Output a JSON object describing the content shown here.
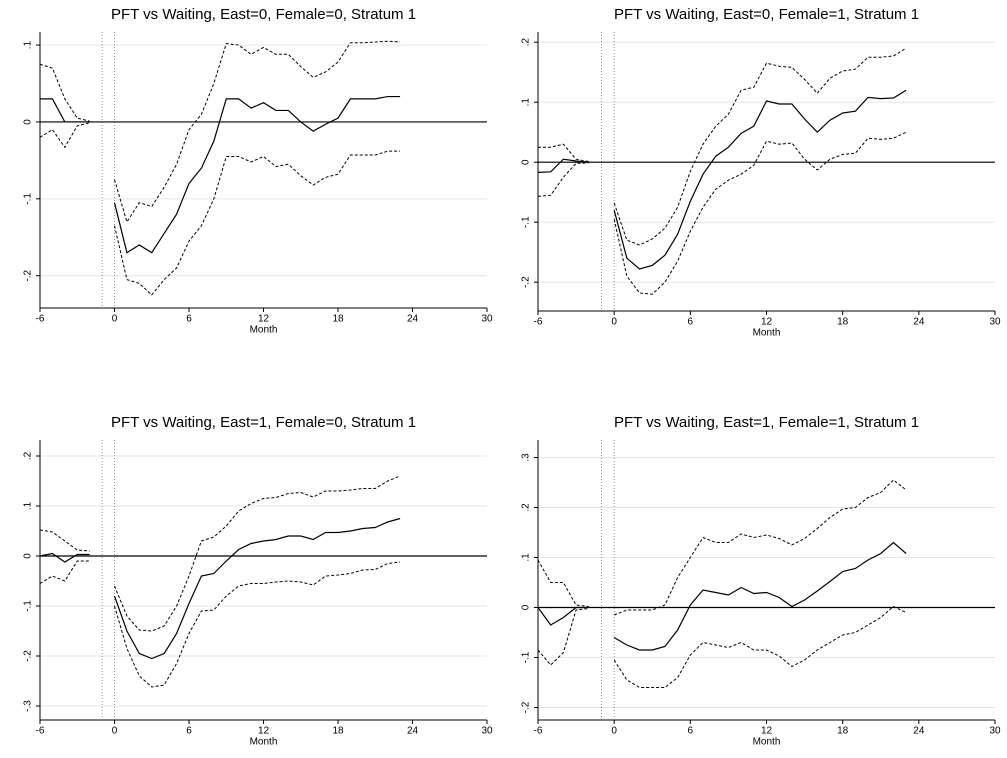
{
  "chart_data": [
    {
      "type": "line",
      "title": "PFT vs Waiting, East=0, Female=0, Stratum 1",
      "x_label": "Month",
      "x": [
        -6,
        -5,
        -4,
        -3,
        -2,
        -1,
        0,
        1,
        2,
        3,
        4,
        5,
        6,
        7,
        8,
        9,
        10,
        11,
        12,
        13,
        14,
        15,
        16,
        17,
        18,
        19,
        20,
        21,
        22,
        23
      ],
      "xlim": [
        -6,
        30
      ],
      "xticks": [
        -6,
        0,
        6,
        12,
        18,
        24,
        30
      ],
      "ylim": [
        -0.242,
        0.117
      ],
      "yticks": [
        {
          "value": -0.2,
          "label": "-.2"
        },
        {
          "value": -0.1,
          "label": "-.1"
        },
        0,
        {
          "value": 0.1,
          "label": ".1"
        }
      ],
      "grid": true,
      "vlines": [
        -1,
        0
      ],
      "hlines": [
        0
      ],
      "series": [
        {
          "color": "#000000",
          "dashed": false,
          "values": [
            0.03,
            0.03,
            0,
            0,
            0,
            null,
            -0.105,
            -0.17,
            -0.16,
            -0.17,
            -0.145,
            -0.12,
            -0.08,
            -0.06,
            -0.025,
            0.03,
            0.03,
            0.018,
            0.025,
            0.015,
            0.015,
            0,
            -0.012,
            -0.003,
            0.005,
            0.03,
            0.03,
            0.03,
            0.033,
            0.033
          ]
        },
        {
          "color": "#000000",
          "dashed": true,
          "values": [
            0.075,
            0.07,
            0.03,
            0.005,
            0.001,
            null,
            -0.075,
            -0.13,
            -0.105,
            -0.11,
            -0.085,
            -0.055,
            -0.01,
            0.01,
            0.05,
            0.102,
            0.1,
            0.088,
            0.097,
            0.088,
            0.088,
            0.072,
            0.058,
            0.065,
            0.078,
            0.103,
            0.103,
            0.104,
            0.105,
            0.104
          ]
        },
        {
          "color": "#000000",
          "dashed": true,
          "values": [
            -0.02,
            -0.01,
            -0.033,
            -0.005,
            -0.001,
            null,
            -0.135,
            -0.205,
            -0.21,
            -0.225,
            -0.205,
            -0.19,
            -0.155,
            -0.135,
            -0.1,
            -0.045,
            -0.045,
            -0.052,
            -0.045,
            -0.058,
            -0.055,
            -0.07,
            -0.082,
            -0.072,
            -0.068,
            -0.043,
            -0.043,
            -0.043,
            -0.038,
            -0.038
          ]
        }
      ]
    },
    {
      "type": "line",
      "title": "PFT vs Waiting, East=0, Female=1, Stratum 1",
      "x_label": "Month",
      "x": [
        -6,
        -5,
        -4,
        -3,
        -2,
        -1,
        0,
        1,
        2,
        3,
        4,
        5,
        6,
        7,
        8,
        9,
        10,
        11,
        12,
        13,
        14,
        15,
        16,
        17,
        18,
        19,
        20,
        21,
        22,
        23
      ],
      "xlim": [
        -6,
        30
      ],
      "xticks": [
        -6,
        0,
        6,
        12,
        18,
        24,
        30
      ],
      "ylim": [
        -0.248,
        0.217
      ],
      "yticks": [
        {
          "value": -0.2,
          "label": "-.2"
        },
        {
          "value": -0.1,
          "label": "-.1"
        },
        0,
        {
          "value": 0.1,
          "label": ".1"
        },
        {
          "value": 0.2,
          "label": ".2"
        }
      ],
      "grid": true,
      "vlines": [
        -1,
        0
      ],
      "hlines": [
        0
      ],
      "series": [
        {
          "color": "#000000",
          "dashed": false,
          "values": [
            -0.017,
            -0.016,
            0.005,
            0.002,
            0,
            null,
            -0.08,
            -0.16,
            -0.178,
            -0.172,
            -0.155,
            -0.12,
            -0.065,
            -0.02,
            0.01,
            0.025,
            0.048,
            0.06,
            0.102,
            0.097,
            0.097,
            0.072,
            0.05,
            0.07,
            0.082,
            0.085,
            0.108,
            0.106,
            0.107,
            0.12
          ]
        },
        {
          "color": "#000000",
          "dashed": true,
          "values": [
            0.025,
            0.025,
            0.03,
            0.005,
            0.001,
            null,
            -0.068,
            -0.13,
            -0.138,
            -0.128,
            -0.11,
            -0.075,
            -0.015,
            0.03,
            0.06,
            0.08,
            0.12,
            0.125,
            0.165,
            0.16,
            0.158,
            0.138,
            0.115,
            0.14,
            0.152,
            0.155,
            0.175,
            0.175,
            0.177,
            0.19
          ]
        },
        {
          "color": "#000000",
          "dashed": true,
          "values": [
            -0.057,
            -0.055,
            -0.025,
            -0.002,
            -0.001,
            null,
            -0.095,
            -0.19,
            -0.218,
            -0.22,
            -0.2,
            -0.165,
            -0.115,
            -0.075,
            -0.045,
            -0.03,
            -0.02,
            -0.005,
            0.035,
            0.03,
            0.032,
            0.005,
            -0.013,
            0.005,
            0.013,
            0.015,
            0.04,
            0.038,
            0.04,
            0.05
          ]
        }
      ]
    },
    {
      "type": "line",
      "title": "PFT vs Waiting, East=1, Female=0, Stratum 1",
      "x_label": "Month",
      "x": [
        -6,
        -5,
        -4,
        -3,
        -2,
        -1,
        0,
        1,
        2,
        3,
        4,
        5,
        6,
        7,
        8,
        9,
        10,
        11,
        12,
        13,
        14,
        15,
        16,
        17,
        18,
        19,
        20,
        21,
        22,
        23
      ],
      "xlim": [
        -6,
        30
      ],
      "xticks": [
        -6,
        0,
        6,
        12,
        18,
        24,
        30
      ],
      "ylim": [
        -0.328,
        0.232
      ],
      "yticks": [
        {
          "value": -0.3,
          "label": "-.3"
        },
        {
          "value": -0.2,
          "label": "-.2"
        },
        {
          "value": -0.1,
          "label": "-.1"
        },
        0,
        {
          "value": 0.1,
          "label": ".1"
        },
        {
          "value": 0.2,
          "label": ".2"
        }
      ],
      "grid": true,
      "vlines": [
        -1,
        0
      ],
      "hlines": [
        0
      ],
      "series": [
        {
          "color": "#000000",
          "dashed": false,
          "values": [
            0,
            0.005,
            -0.012,
            0.003,
            0.003,
            null,
            -0.08,
            -0.15,
            -0.195,
            -0.205,
            -0.195,
            -0.155,
            -0.095,
            -0.04,
            -0.035,
            -0.01,
            0.013,
            0.025,
            0.03,
            0.033,
            0.04,
            0.04,
            0.033,
            0.047,
            0.047,
            0.05,
            0.055,
            0.057,
            0.068,
            0.075
          ]
        },
        {
          "color": "#000000",
          "dashed": true,
          "values": [
            0.052,
            0.048,
            0.03,
            0.012,
            0.01,
            null,
            -0.06,
            -0.12,
            -0.148,
            -0.15,
            -0.14,
            -0.1,
            -0.04,
            0.03,
            0.038,
            0.06,
            0.09,
            0.105,
            0.115,
            0.117,
            0.125,
            0.127,
            0.118,
            0.13,
            0.13,
            0.132,
            0.135,
            0.135,
            0.15,
            0.16
          ]
        },
        {
          "color": "#000000",
          "dashed": true,
          "values": [
            -0.055,
            -0.04,
            -0.05,
            -0.01,
            -0.01,
            null,
            -0.1,
            -0.185,
            -0.24,
            -0.262,
            -0.258,
            -0.215,
            -0.155,
            -0.11,
            -0.108,
            -0.08,
            -0.06,
            -0.055,
            -0.055,
            -0.052,
            -0.05,
            -0.052,
            -0.058,
            -0.04,
            -0.038,
            -0.035,
            -0.028,
            -0.027,
            -0.015,
            -0.012
          ]
        }
      ]
    },
    {
      "type": "line",
      "title": "PFT vs Waiting, East=1, Female=1, Stratum 1",
      "x_label": "Month",
      "x": [
        -6,
        -5,
        -4,
        -3,
        -2,
        -1,
        0,
        1,
        2,
        3,
        4,
        5,
        6,
        7,
        8,
        9,
        10,
        11,
        12,
        13,
        14,
        15,
        16,
        17,
        18,
        19,
        20,
        21,
        22,
        23
      ],
      "xlim": [
        -6,
        30
      ],
      "xticks": [
        -6,
        0,
        6,
        12,
        18,
        24,
        30
      ],
      "ylim": [
        -0.225,
        0.335
      ],
      "yticks": [
        {
          "value": -0.2,
          "label": "-.2"
        },
        {
          "value": -0.1,
          "label": "-.1"
        },
        0,
        {
          "value": 0.1,
          "label": ".1"
        },
        {
          "value": 0.2,
          "label": ".2"
        },
        {
          "value": 0.3,
          "label": ".3"
        }
      ],
      "grid": true,
      "vlines": [
        -1,
        0
      ],
      "hlines": [
        0
      ],
      "series": [
        {
          "color": "#000000",
          "dashed": false,
          "values": [
            0,
            -0.035,
            -0.02,
            0,
            0,
            null,
            -0.06,
            -0.075,
            -0.085,
            -0.085,
            -0.078,
            -0.045,
            0.005,
            0.035,
            0.03,
            0.025,
            0.04,
            0.028,
            0.03,
            0.02,
            0.002,
            0.015,
            0.033,
            0.052,
            0.072,
            0.078,
            0.095,
            0.108,
            0.13,
            0.108
          ]
        },
        {
          "color": "#000000",
          "dashed": true,
          "values": [
            0.095,
            0.05,
            0.05,
            0.005,
            0.002,
            null,
            -0.015,
            -0.005,
            -0.005,
            -0.005,
            0.005,
            0.06,
            0.1,
            0.14,
            0.13,
            0.13,
            0.147,
            0.14,
            0.145,
            0.138,
            0.125,
            0.138,
            0.158,
            0.18,
            0.197,
            0.2,
            0.22,
            0.23,
            0.255,
            0.235
          ]
        },
        {
          "color": "#000000",
          "dashed": true,
          "values": [
            -0.085,
            -0.115,
            -0.09,
            -0.005,
            -0.002,
            null,
            -0.105,
            -0.145,
            -0.16,
            -0.16,
            -0.16,
            -0.14,
            -0.095,
            -0.07,
            -0.075,
            -0.08,
            -0.07,
            -0.085,
            -0.085,
            -0.097,
            -0.118,
            -0.105,
            -0.085,
            -0.07,
            -0.055,
            -0.05,
            -0.035,
            -0.02,
            0.002,
            -0.01
          ]
        }
      ]
    }
  ]
}
